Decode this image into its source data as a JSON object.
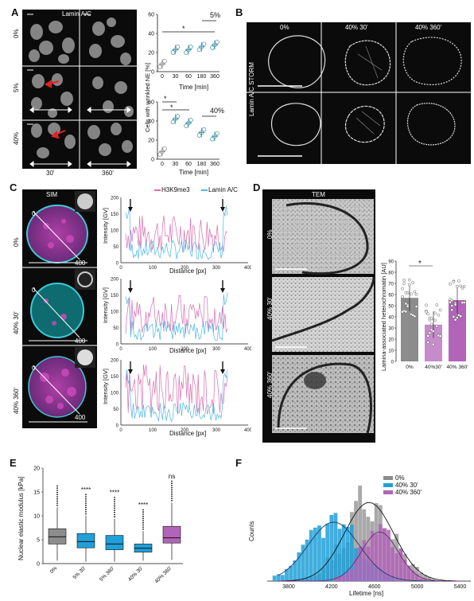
{
  "panels": {
    "A": "A",
    "B": "B",
    "C": "C",
    "D": "D",
    "E": "E",
    "F": "F"
  },
  "panel_a": {
    "title": "Lamin A/C",
    "rows": [
      "0%",
      "5%",
      "40%"
    ],
    "cols": [
      "30'",
      "360'"
    ],
    "ylabel": "Cells with wrinkled NE [%]",
    "xlabel_top": "Time [min]",
    "xlabel_bottom": "Time [min]",
    "label_5": "5%",
    "label_40": "40%",
    "star": "*"
  },
  "panel_b": {
    "cols": [
      "0%",
      "40% 30'",
      "40% 360'"
    ],
    "row_label": "Lamin A/C STORM"
  },
  "panel_c": {
    "title": "SIM",
    "rows": [
      "0%",
      "40% 30'",
      "40% 360'"
    ],
    "zero": "0",
    "four": "400",
    "legend_h3": "H3K9me3",
    "legend_lamin": "Lamin A/C",
    "ylabel": "Intensity [GV]",
    "xlabel": "Distance [px]"
  },
  "panel_d": {
    "title": "TEM",
    "rows": [
      "0%",
      "40% 30'",
      "40% 360'"
    ],
    "ylabel": "Lamina-associated heterochromatin [AU]",
    "categories": [
      "0%",
      "40%30'",
      "40% 360'"
    ],
    "star": "*"
  },
  "panel_e": {
    "ylabel": "Nuclear elastic modulus [kPa]",
    "sig": [
      "****",
      "****",
      "****",
      "ns"
    ]
  },
  "panel_f": {
    "legend": [
      "0%",
      "40% 30'",
      "40% 360'"
    ],
    "ylabel": "Counts",
    "xlabel": "Lifetime [ns]"
  },
  "colors": {
    "gray": "#8c8c8c",
    "blue": "#1fa0d8",
    "magenta": "#b264b8",
    "pink": "#d56fb0",
    "lightblue": "#4fb6e6",
    "teal": "#3b8ea5"
  },
  "chart_data": [
    {
      "type": "scatter",
      "panel": "A-top",
      "x": [
        0,
        30,
        60,
        180,
        360
      ],
      "tick_labels": [
        "0",
        "30",
        "60",
        "180",
        "360"
      ],
      "xlabel": "Time [min]",
      "ylim": [
        0,
        60
      ],
      "yticks": [
        0,
        20,
        40,
        60
      ],
      "series": [
        {
          "name": "5%",
          "means": [
            8,
            23,
            23,
            26,
            28
          ]
        }
      ]
    },
    {
      "type": "scatter",
      "panel": "A-bottom",
      "x": [
        0,
        30,
        60,
        180,
        360
      ],
      "tick_labels": [
        "0",
        "30",
        "60",
        "180",
        "360"
      ],
      "xlabel": "Time [min]",
      "ylim": [
        0,
        60
      ],
      "yticks": [
        0,
        20,
        40,
        60
      ],
      "series": [
        {
          "name": "40%",
          "means": [
            8,
            42,
            38,
            28,
            24
          ]
        }
      ]
    },
    {
      "type": "line",
      "panel": "C",
      "xlabel": "Distance [px]",
      "ylabel": "Intensity [GV]",
      "xlim": [
        0,
        400
      ],
      "ylim": [
        0,
        200
      ],
      "xticks": [
        0,
        100,
        200,
        300,
        400
      ],
      "yticks": [
        0,
        50,
        100,
        150,
        200
      ],
      "series": [
        {
          "name": "H3K9me3"
        },
        {
          "name": "Lamin A/C"
        }
      ]
    },
    {
      "type": "bar",
      "panel": "D",
      "categories": [
        "0%",
        "40%30'",
        "40% 360'"
      ],
      "values": [
        57,
        33,
        55
      ],
      "ylim": [
        0,
        90
      ],
      "yticks": [
        0,
        10,
        20,
        30,
        40,
        50,
        60,
        70,
        80,
        90
      ],
      "ylabel": "Lamina-associated heterochromatin [AU]"
    },
    {
      "type": "box",
      "panel": "E",
      "categories": [
        "0%",
        "5% 30'",
        "5% 360'",
        "40% 30'",
        "40% 360'"
      ],
      "median": [
        5.6,
        4.6,
        4.1,
        3.2,
        5.4
      ],
      "q1": [
        4.1,
        3.3,
        2.9,
        2.4,
        4.3
      ],
      "q3": [
        7.3,
        6.3,
        5.9,
        4.1,
        7.8
      ],
      "whisker_low": [
        0.6,
        0.4,
        0.4,
        0.6,
        0.8
      ],
      "whisker_high": [
        11.8,
        10,
        9.4,
        6.8,
        12.8
      ],
      "ylim": [
        0,
        20
      ],
      "yticks": [
        0,
        5,
        10,
        15,
        20
      ],
      "ylabel": "Nuclear elastic modulus [kPa]"
    },
    {
      "type": "histogram",
      "panel": "F",
      "xlabel": "Lifetime [ns]",
      "ylabel": "Counts",
      "xticks": [
        3800,
        4200,
        4600,
        5000,
        5400
      ],
      "series": [
        {
          "name": "0%"
        },
        {
          "name": "40% 30'"
        },
        {
          "name": "40% 360'"
        }
      ]
    }
  ]
}
